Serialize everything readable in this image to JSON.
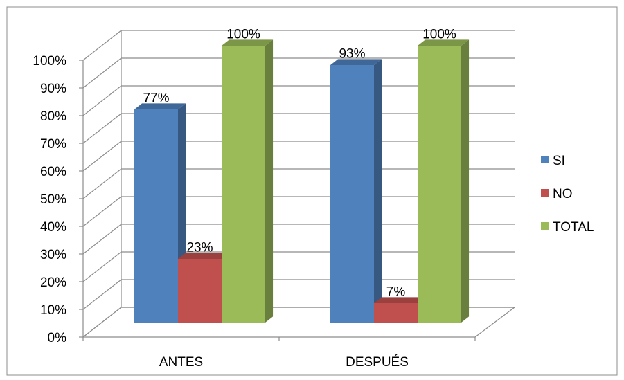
{
  "chart_data": {
    "type": "bar",
    "title": "",
    "xlabel": "",
    "ylabel": "",
    "ylim": [
      0,
      100
    ],
    "y_ticks": [
      "0%",
      "10%",
      "20%",
      "30%",
      "40%",
      "50%",
      "60%",
      "70%",
      "80%",
      "90%",
      "100%"
    ],
    "categories": [
      "ANTES",
      "DESPUÉS"
    ],
    "series": [
      {
        "name": "SI",
        "values": [
          77,
          93
        ],
        "labels": [
          "77%",
          "93%"
        ],
        "color": "#4F81BD"
      },
      {
        "name": "NO",
        "values": [
          23,
          7
        ],
        "labels": [
          "23%",
          "7%"
        ],
        "color": "#C0504D"
      },
      {
        "name": "TOTAL",
        "values": [
          100,
          100
        ],
        "labels": [
          "100%",
          "100%"
        ],
        "color": "#9BBB59"
      }
    ],
    "grid": true,
    "style": "3d-clustered-column",
    "legend_position": "right"
  }
}
